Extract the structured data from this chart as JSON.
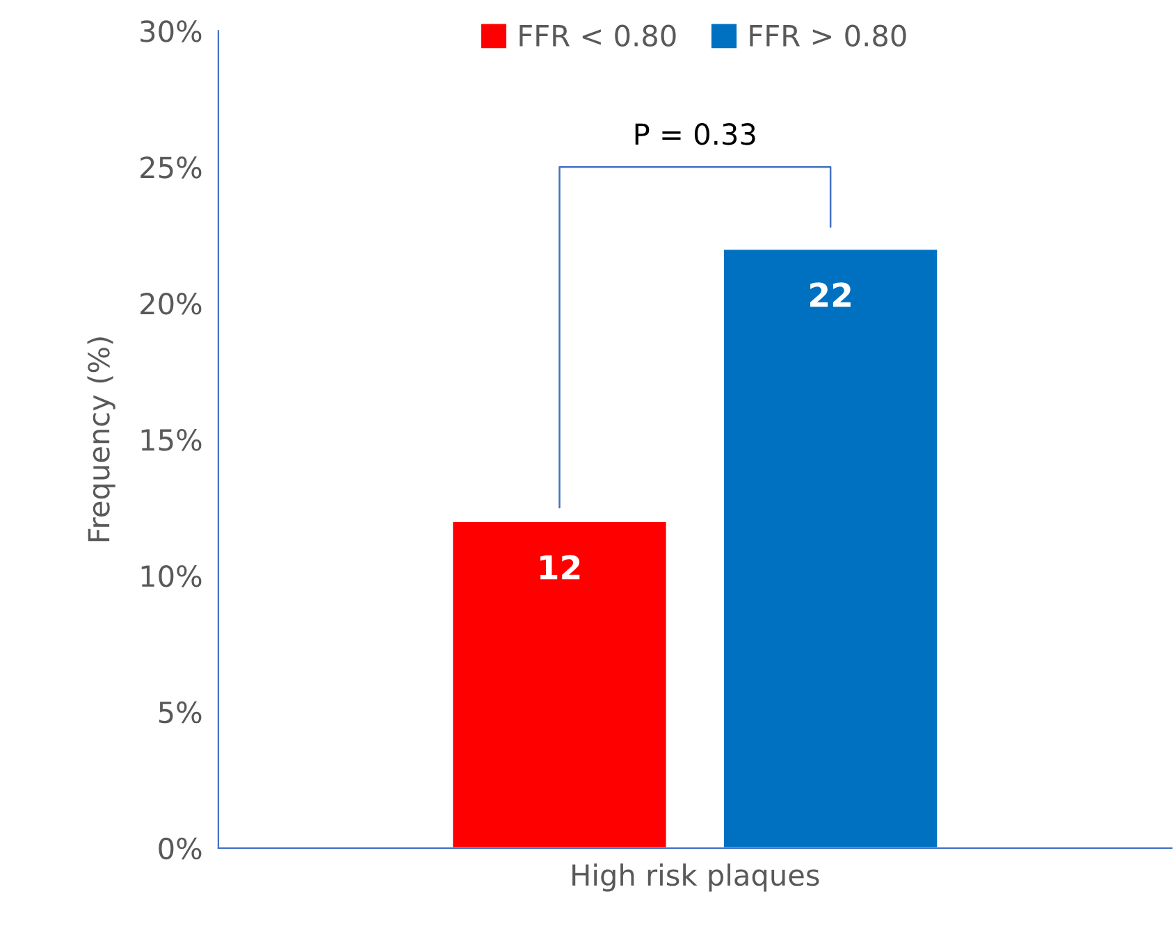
{
  "chart_data": {
    "type": "bar",
    "ylabel": "Frequency (%)",
    "categories": [
      "High risk plaques"
    ],
    "series": [
      {
        "name": "FFR < 0.80",
        "color": "#ff0000",
        "values": [
          12
        ]
      },
      {
        "name": "FFR > 0.80",
        "color": "#0070c0",
        "values": [
          22
        ]
      }
    ],
    "ylim": [
      0,
      30
    ],
    "yticks": [
      {
        "value": 0,
        "label": "0%"
      },
      {
        "value": 5,
        "label": "5%"
      },
      {
        "value": 10,
        "label": "10%"
      },
      {
        "value": 15,
        "label": "15%"
      },
      {
        "value": 20,
        "label": "20%"
      },
      {
        "value": 25,
        "label": "25%"
      },
      {
        "value": 30,
        "label": "30%"
      }
    ],
    "data_labels": true,
    "legend": "top",
    "grid": false,
    "annotations": [
      "P = 0.33"
    ]
  }
}
